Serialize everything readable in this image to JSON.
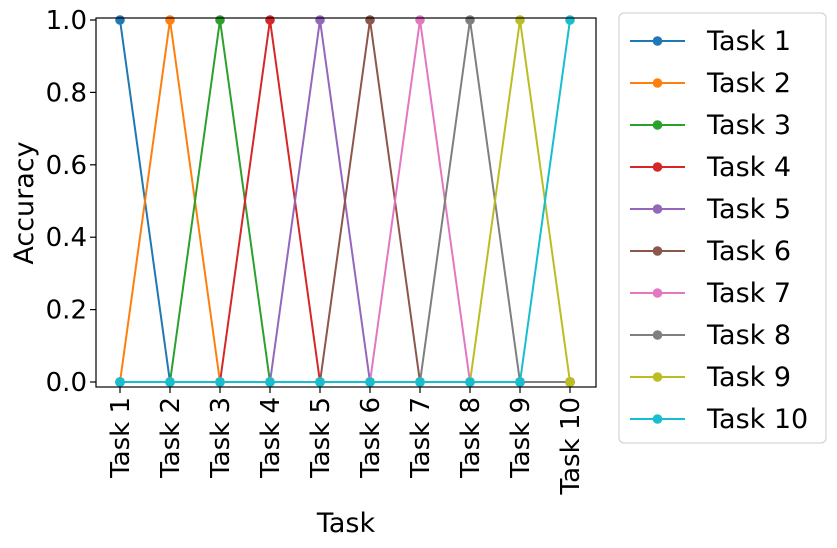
{
  "chart_data": {
    "type": "line",
    "xlabel": "Task",
    "ylabel": "Accuracy",
    "ylim": [
      0,
      1
    ],
    "yticks": [
      "0.0",
      "0.2",
      "0.4",
      "0.6",
      "0.8",
      "1.0"
    ],
    "categories": [
      "Task 1",
      "Task 2",
      "Task 3",
      "Task 4",
      "Task 5",
      "Task 6",
      "Task 7",
      "Task 8",
      "Task 9",
      "Task 10"
    ],
    "legend_position": "outside-right",
    "series": [
      {
        "name": "Task 1",
        "color": "#1f77b4",
        "values": [
          1,
          0,
          0,
          0,
          0,
          0,
          0,
          0,
          0,
          0
        ]
      },
      {
        "name": "Task 2",
        "color": "#ff7f0e",
        "values": [
          0,
          1,
          0,
          0,
          0,
          0,
          0,
          0,
          0,
          0
        ]
      },
      {
        "name": "Task 3",
        "color": "#2ca02c",
        "values": [
          0,
          0,
          1,
          0,
          0,
          0,
          0,
          0,
          0,
          0
        ]
      },
      {
        "name": "Task 4",
        "color": "#d62728",
        "values": [
          0,
          0,
          0,
          1,
          0,
          0,
          0,
          0,
          0,
          0
        ]
      },
      {
        "name": "Task 5",
        "color": "#9467bd",
        "values": [
          0,
          0,
          0,
          0,
          1,
          0,
          0,
          0,
          0,
          0
        ]
      },
      {
        "name": "Task 6",
        "color": "#8c564b",
        "values": [
          0,
          0,
          0,
          0,
          0,
          1,
          0,
          0,
          0,
          0
        ]
      },
      {
        "name": "Task 7",
        "color": "#e377c2",
        "values": [
          0,
          0,
          0,
          0,
          0,
          0,
          1,
          0,
          0,
          0
        ]
      },
      {
        "name": "Task 8",
        "color": "#7f7f7f",
        "values": [
          0,
          0,
          0,
          0,
          0,
          0,
          0,
          1,
          0,
          0
        ]
      },
      {
        "name": "Task 9",
        "color": "#bcbd22",
        "values": [
          0,
          0,
          0,
          0,
          0,
          0,
          0,
          0,
          1,
          0
        ]
      },
      {
        "name": "Task 10",
        "color": "#17becf",
        "values": [
          0,
          0,
          0,
          0,
          0,
          0,
          0,
          0,
          0,
          1
        ]
      }
    ]
  }
}
